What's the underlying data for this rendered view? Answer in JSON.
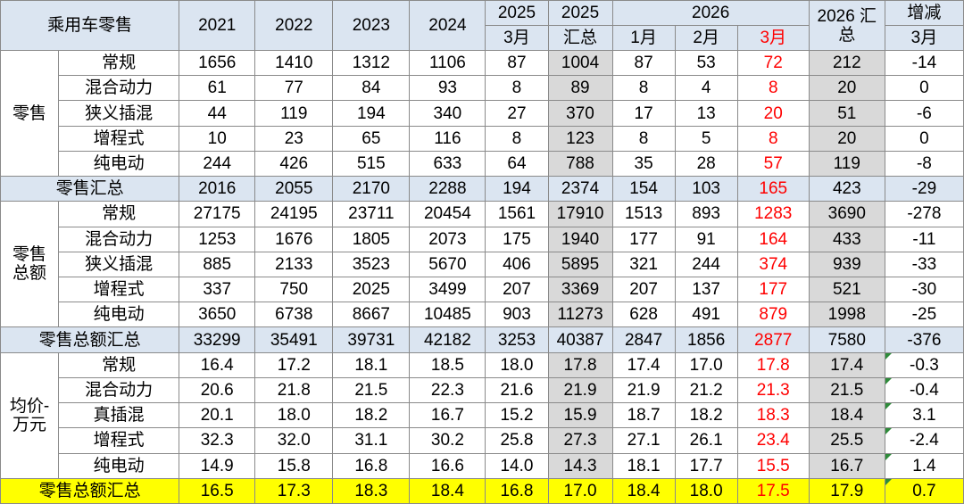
{
  "header": {
    "title": "乘用车零售",
    "years": [
      "2021",
      "2022",
      "2023",
      "2024"
    ],
    "y2025": "2025",
    "m2025": "3月",
    "sum2025": "2025",
    "sum2025b": "汇总",
    "y2026": "2026",
    "months2026": [
      "1月",
      "2月",
      "3月"
    ],
    "sum2026": "2026 汇总",
    "change": "增减",
    "changeMonth": "3月"
  },
  "groups": [
    {
      "label": [
        "零售"
      ],
      "rows": [
        {
          "name": "常规",
          "values": [
            "1656",
            "1410",
            "1312",
            "1106",
            "87",
            "1004",
            "87",
            "53",
            "72",
            "212",
            "-14"
          ]
        },
        {
          "name": "混合动力",
          "values": [
            "61",
            "77",
            "84",
            "93",
            "8",
            "89",
            "8",
            "4",
            "8",
            "20",
            "0"
          ]
        },
        {
          "name": "狭义插混",
          "values": [
            "44",
            "119",
            "194",
            "340",
            "27",
            "370",
            "17",
            "13",
            "20",
            "51",
            "-6"
          ]
        },
        {
          "name": "增程式",
          "values": [
            "10",
            "23",
            "65",
            "116",
            "8",
            "123",
            "8",
            "5",
            "8",
            "20",
            "0"
          ]
        },
        {
          "name": "纯电动",
          "values": [
            "244",
            "426",
            "515",
            "633",
            "64",
            "788",
            "35",
            "28",
            "57",
            "119",
            "-8"
          ]
        }
      ],
      "total": {
        "name": "零售汇总",
        "values": [
          "2016",
          "2055",
          "2170",
          "2288",
          "194",
          "2374",
          "154",
          "103",
          "165",
          "423",
          "-29"
        ]
      }
    },
    {
      "label": [
        "零售",
        "总额"
      ],
      "rows": [
        {
          "name": "常规",
          "values": [
            "27175",
            "24195",
            "23711",
            "20454",
            "1561",
            "17910",
            "1513",
            "893",
            "1283",
            "3690",
            "-278"
          ]
        },
        {
          "name": "混合动力",
          "values": [
            "1253",
            "1676",
            "1805",
            "2073",
            "175",
            "1940",
            "177",
            "91",
            "164",
            "433",
            "-11"
          ]
        },
        {
          "name": "狭义插混",
          "values": [
            "885",
            "2133",
            "3523",
            "5670",
            "406",
            "5895",
            "321",
            "244",
            "374",
            "939",
            "-33"
          ]
        },
        {
          "name": "增程式",
          "values": [
            "337",
            "750",
            "2025",
            "3499",
            "207",
            "3369",
            "207",
            "137",
            "177",
            "521",
            "-30"
          ]
        },
        {
          "name": "纯电动",
          "values": [
            "3650",
            "6738",
            "8667",
            "10485",
            "903",
            "11273",
            "628",
            "491",
            "879",
            "1998",
            "-25"
          ]
        }
      ],
      "total": {
        "name": "零售总额汇总",
        "values": [
          "33299",
          "35491",
          "39731",
          "42182",
          "3253",
          "40387",
          "2847",
          "1856",
          "2877",
          "7580",
          "-376"
        ]
      }
    },
    {
      "label": [
        "均价-",
        "万元"
      ],
      "rows": [
        {
          "name": "常规",
          "values": [
            "16.4",
            "17.2",
            "18.1",
            "18.5",
            "18.0",
            "17.8",
            "17.4",
            "17.0",
            "17.8",
            "17.4",
            "-0.3"
          ]
        },
        {
          "name": "混合动力",
          "values": [
            "20.6",
            "21.8",
            "21.5",
            "22.3",
            "21.6",
            "21.9",
            "21.9",
            "21.2",
            "21.3",
            "21.5",
            "-0.4"
          ]
        },
        {
          "name": "真插混",
          "values": [
            "20.1",
            "18.0",
            "18.2",
            "16.7",
            "15.2",
            "15.9",
            "18.7",
            "18.2",
            "18.3",
            "18.4",
            "3.1"
          ]
        },
        {
          "name": "增程式",
          "values": [
            "32.3",
            "32.0",
            "31.1",
            "30.2",
            "25.8",
            "27.3",
            "27.1",
            "26.1",
            "23.4",
            "25.5",
            "-2.4"
          ]
        },
        {
          "name": "纯电动",
          "values": [
            "14.9",
            "15.8",
            "16.8",
            "16.6",
            "14.0",
            "14.3",
            "18.1",
            "17.7",
            "15.5",
            "16.7",
            "1.4"
          ]
        }
      ],
      "total": {
        "name": "零售总额汇总",
        "values": [
          "16.5",
          "17.3",
          "18.3",
          "18.4",
          "16.8",
          "17.0",
          "18.4",
          "18.0",
          "17.5",
          "17.9",
          "0.7"
        ]
      }
    }
  ]
}
